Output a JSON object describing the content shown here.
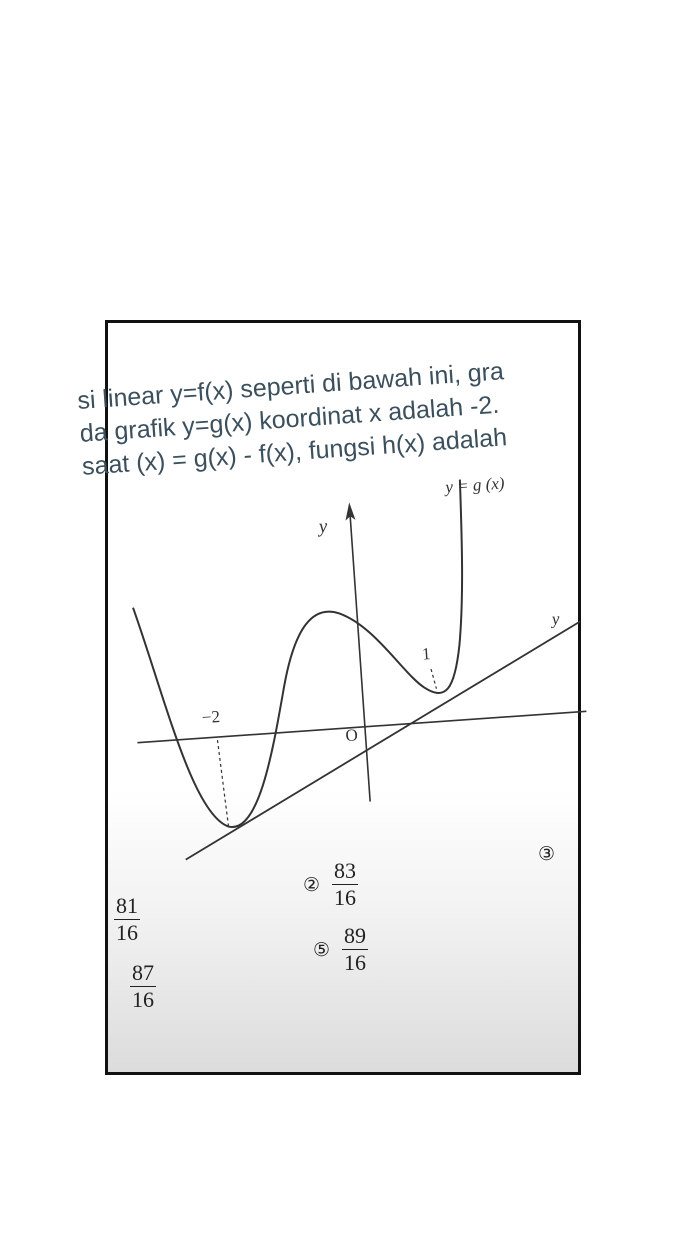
{
  "problem": {
    "lines": [
      "si linear y=f(x) seperti di bawah ini, gra",
      "da grafik y=g(x) koordinat x adalah -2.",
      "saat (x) = g(x) - f(x), fungsi h(x) adalah"
    ]
  },
  "graph": {
    "y_axis_label": "y",
    "origin_label": "O",
    "curve_label": "y = g (x)",
    "line_label_partial": "y",
    "tick_neg2": "−2",
    "tick_1": "1"
  },
  "choices": [
    {
      "marker": "",
      "numerator": "81",
      "denominator": "16"
    },
    {
      "marker": "②",
      "numerator": "83",
      "denominator": "16"
    },
    {
      "marker": "③",
      "numerator": "",
      "denominator": ""
    },
    {
      "marker": "",
      "numerator": "87",
      "denominator": "16"
    },
    {
      "marker": "⑤",
      "numerator": "89",
      "denominator": "16"
    }
  ],
  "colors": {
    "text": "#3b4f5c",
    "ink": "#222222",
    "frame": "#111111"
  }
}
